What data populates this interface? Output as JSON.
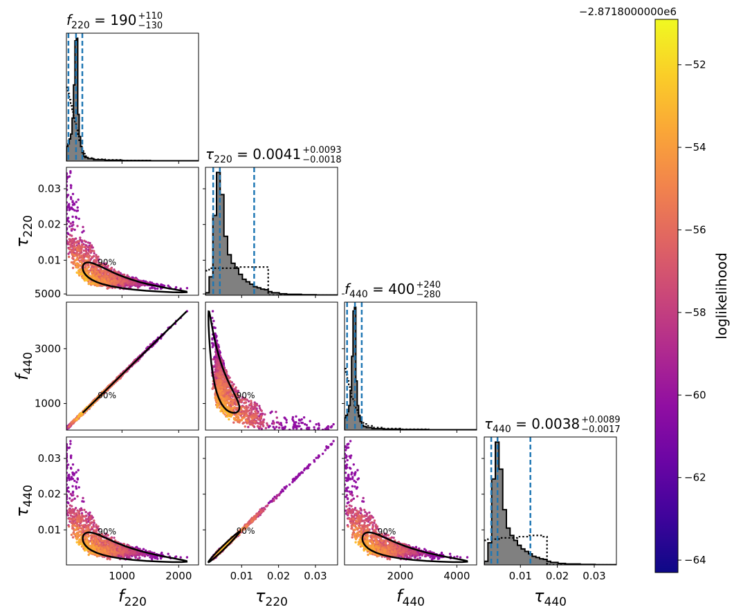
{
  "chart_data": {
    "type": "scatter",
    "description": "corner plot",
    "parameters": [
      {
        "key": "f220",
        "symbol": "f",
        "sub": "220",
        "range": [
          20,
          2350
        ],
        "title_value": "190",
        "err_plus": "+110",
        "err_minus": "−130",
        "lines": [
          55,
          190,
          300
        ],
        "hist_x": [
          20,
          45,
          70,
          95,
          120,
          145,
          170,
          195,
          220,
          245,
          270,
          295,
          320,
          345,
          400,
          500,
          700,
          1000,
          1500,
          2350
        ],
        "hist_y": [
          0.12,
          0.14,
          0.18,
          0.22,
          0.35,
          0.62,
          0.98,
          1.0,
          0.38,
          0.2,
          0.12,
          0.07,
          0.04,
          0.03,
          0.02,
          0.012,
          0.008,
          0.005,
          0.003
        ],
        "prior_y": [
          0.6,
          0.55,
          0.5,
          0.45,
          0.4,
          0.35,
          0.3,
          0.25,
          0.2,
          0.16,
          0.12,
          0.09,
          0.06,
          0.04,
          0.025,
          0.015,
          0.01,
          0.005,
          0.002
        ],
        "ticks": [
          1000,
          2000
        ],
        "tick_labels": [
          "1000",
          "2000"
        ]
      },
      {
        "key": "tau220",
        "symbol": "τ",
        "sub": "220",
        "range": [
          0.0002,
          0.036
        ],
        "title_value": "0.0041",
        "err_plus": "+0.0093",
        "err_minus": "−0.0018",
        "lines": [
          0.0023,
          0.0041,
          0.0134
        ],
        "hist_x": [
          0.0002,
          0.0012,
          0.0022,
          0.0032,
          0.0042,
          0.0052,
          0.0062,
          0.0072,
          0.0082,
          0.0092,
          0.0102,
          0.0112,
          0.0122,
          0.0132,
          0.0142,
          0.0152,
          0.0162,
          0.0172,
          0.0182,
          0.0202,
          0.0222,
          0.0262,
          0.0302,
          0.036
        ],
        "hist_y": [
          0.02,
          0.15,
          0.65,
          1.0,
          0.82,
          0.48,
          0.33,
          0.26,
          0.22,
          0.17,
          0.13,
          0.11,
          0.09,
          0.07,
          0.06,
          0.05,
          0.045,
          0.03,
          0.02,
          0.012,
          0.008,
          0.004,
          0.002
        ],
        "prior_y": [
          0.2,
          0.22,
          0.22,
          0.22,
          0.22,
          0.22,
          0.22,
          0.22,
          0.23,
          0.23,
          0.23,
          0.23,
          0.23,
          0.23,
          0.23,
          0.23,
          0.23,
          0.0,
          0.0,
          0.0,
          0.0,
          0.0,
          0.0
        ],
        "ticks": [
          0.01,
          0.02,
          0.03
        ],
        "tick_labels": [
          "0.01",
          "0.02",
          "0.03"
        ]
      },
      {
        "key": "f440",
        "symbol": "f",
        "sub": "440",
        "range": [
          30,
          4700
        ],
        "title_value": "400",
        "err_plus": "+240",
        "err_minus": "−280",
        "lines": [
          120,
          400,
          640
        ],
        "hist_x": [
          30,
          80,
          130,
          180,
          230,
          280,
          330,
          380,
          430,
          480,
          530,
          580,
          640,
          700,
          800,
          1000,
          1400,
          2000,
          3000,
          4700
        ],
        "hist_y": [
          0.1,
          0.12,
          0.15,
          0.2,
          0.32,
          0.6,
          0.97,
          1.0,
          0.4,
          0.2,
          0.12,
          0.07,
          0.04,
          0.03,
          0.02,
          0.012,
          0.008,
          0.005,
          0.003
        ],
        "prior_y": [
          0.5,
          0.45,
          0.4,
          0.35,
          0.3,
          0.27,
          0.24,
          0.2,
          0.17,
          0.14,
          0.11,
          0.09,
          0.07,
          0.05,
          0.035,
          0.02,
          0.012,
          0.006,
          0.002
        ],
        "ticks": [
          2000,
          4000
        ],
        "tick_labels": [
          "2000",
          "4000"
        ]
      },
      {
        "key": "tau440",
        "symbol": "τ",
        "sub": "440",
        "range": [
          0.0002,
          0.036
        ],
        "title_value": "0.0038",
        "err_plus": "+0.0089",
        "err_minus": "−0.0017",
        "lines": [
          0.0021,
          0.0038,
          0.0127
        ],
        "hist_x": [
          0.0002,
          0.0012,
          0.0022,
          0.0032,
          0.0042,
          0.0052,
          0.0062,
          0.0072,
          0.0082,
          0.0092,
          0.0102,
          0.0112,
          0.0122,
          0.0132,
          0.0142,
          0.0152,
          0.0162,
          0.0172,
          0.0182,
          0.0202,
          0.0222,
          0.0262,
          0.0302,
          0.036
        ],
        "hist_y": [
          0.03,
          0.18,
          0.7,
          1.0,
          0.78,
          0.45,
          0.3,
          0.24,
          0.2,
          0.16,
          0.13,
          0.11,
          0.09,
          0.07,
          0.06,
          0.05,
          0.045,
          0.03,
          0.02,
          0.012,
          0.008,
          0.004,
          0.002
        ],
        "prior_y": [
          0.2,
          0.21,
          0.21,
          0.21,
          0.22,
          0.22,
          0.22,
          0.22,
          0.22,
          0.23,
          0.23,
          0.23,
          0.24,
          0.24,
          0.24,
          0.24,
          0.23,
          0.0,
          0.0,
          0.0,
          0.0,
          0.0,
          0.0
        ],
        "ticks": [
          0.01,
          0.02,
          0.03
        ],
        "tick_labels": [
          "0.01",
          "0.02",
          "0.03"
        ]
      }
    ],
    "y_ticks": {
      "tau220": {
        "values": [
          0.01,
          0.02,
          0.03
        ],
        "labels": [
          "0.01",
          "0.02",
          "0.03"
        ]
      },
      "f440": {
        "values": [
          1000,
          3000,
          5000
        ],
        "labels": [
          "1000",
          "3000",
          "5000"
        ]
      },
      "tau440": {
        "values": [
          0.01,
          0.02,
          0.03
        ],
        "labels": [
          "0.01",
          "0.02",
          "0.03"
        ]
      }
    },
    "contour_label": "90%",
    "colorbar": {
      "label": "loglikelihood",
      "offset_text": "−2.8718000000e6",
      "range": [
        -64.3,
        -50.9
      ],
      "ticks": [
        -52,
        -54,
        -56,
        -58,
        -60,
        -62,
        -64
      ],
      "tick_labels": [
        "−52",
        "−54",
        "−56",
        "−58",
        "−60",
        "−62",
        "−64"
      ],
      "colormap": "plasma"
    },
    "grid": false,
    "colors": {
      "quantile_lines": "#1f77b4",
      "histogram_fill": "#808080",
      "contour": "#000000"
    }
  }
}
